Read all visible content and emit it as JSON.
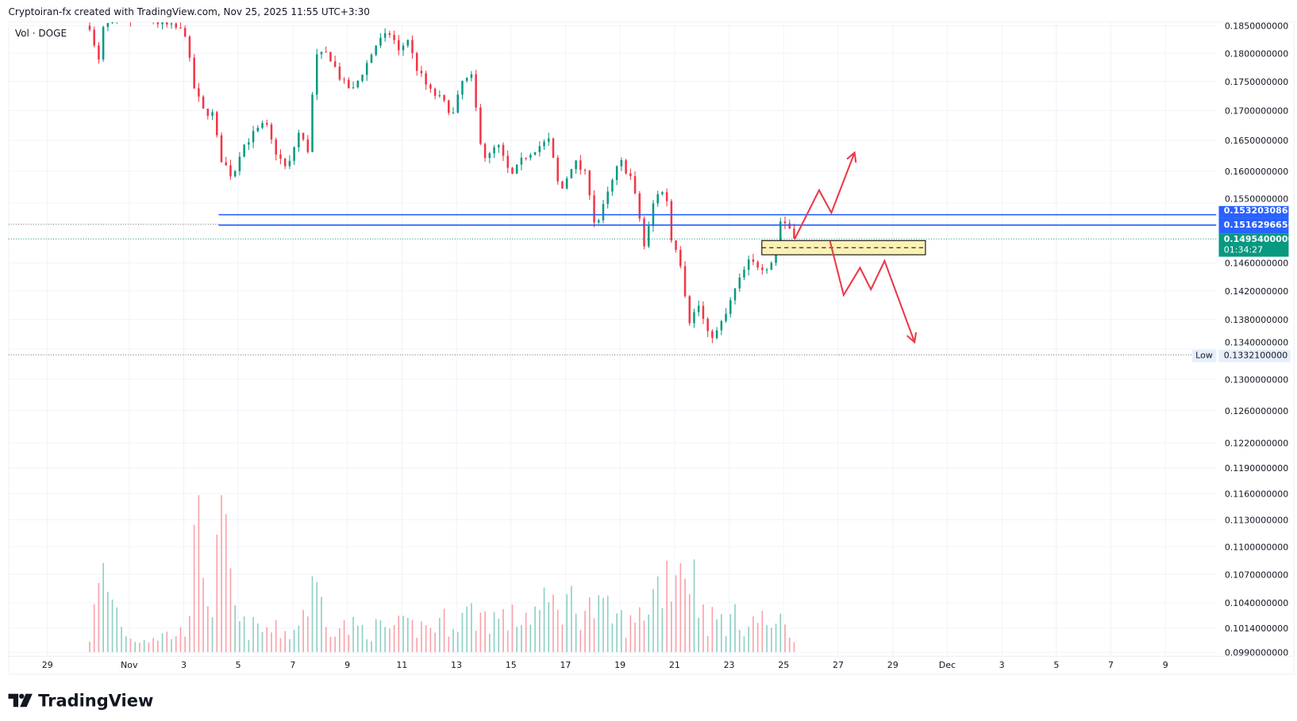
{
  "caption": "Cryptoiran-fx created with TradingView.com, Nov 25, 2025 11:55 UTC+3:30",
  "legend": "Vol · DOGE",
  "logo_text": "TradingView",
  "price_tags": {
    "line1": "0.1532030861",
    "line2": "0.1516296656",
    "last": "0.1495400000",
    "countdown": "01:34:27",
    "low_label": "Low",
    "low_value": "0.1332100000"
  },
  "colors": {
    "up": "#089981",
    "down": "#f23645",
    "line": "#2962ff",
    "arrow": "#ec3a4c",
    "zone": "#fbf1b4"
  },
  "chart_data": {
    "type": "candlestick",
    "symbol": "DOGE",
    "scale": "log",
    "ylim": [
      0.099,
      0.185
    ],
    "y_ticks": [
      "0.1850000000",
      "0.1800000000",
      "0.1750000000",
      "0.1700000000",
      "0.1650000000",
      "0.1600000000",
      "0.1550000000",
      "0.1460000000",
      "0.1420000000",
      "0.1380000000",
      "0.1340000000",
      "0.1300000000",
      "0.1260000000",
      "0.1220000000",
      "0.1190000000",
      "0.1160000000",
      "0.1130000000",
      "0.1100000000",
      "0.1070000000",
      "0.1040000000",
      "0.1014000000",
      "0.0990000000"
    ],
    "x_ticks": [
      "29",
      "Nov",
      "3",
      "5",
      "7",
      "9",
      "11",
      "13",
      "15",
      "17",
      "19",
      "21",
      "23",
      "25",
      "27",
      "29",
      "Dec",
      "3",
      "5",
      "7",
      "9"
    ],
    "x_tick_days": [
      0,
      3,
      5,
      7,
      9,
      11,
      13,
      15,
      17,
      19,
      21,
      23,
      25,
      27,
      29,
      31,
      33,
      35,
      37,
      39,
      41
    ],
    "x_unit": "days since Oct 29",
    "candle_interval_hours": 4,
    "price_path": [
      [
        1.55,
        0.185
      ],
      [
        1.86,
        0.1777
      ],
      [
        2.07,
        0.185
      ],
      [
        2.8,
        0.186
      ],
      [
        3.75,
        0.186
      ],
      [
        4.8,
        0.1844
      ],
      [
        5.1,
        0.1835
      ],
      [
        5.3,
        0.1749
      ],
      [
        5.7,
        0.17
      ],
      [
        6.1,
        0.1693
      ],
      [
        6.3,
        0.1625
      ],
      [
        6.8,
        0.159
      ],
      [
        7.1,
        0.1637
      ],
      [
        7.6,
        0.1663
      ],
      [
        8.0,
        0.1678
      ],
      [
        8.3,
        0.1637
      ],
      [
        8.8,
        0.16
      ],
      [
        9.2,
        0.1663
      ],
      [
        9.6,
        0.1631
      ],
      [
        9.8,
        0.1792
      ],
      [
        10.3,
        0.18
      ],
      [
        10.8,
        0.1749
      ],
      [
        11.2,
        0.1734
      ],
      [
        11.7,
        0.178
      ],
      [
        12.1,
        0.182
      ],
      [
        12.6,
        0.1837
      ],
      [
        12.9,
        0.18
      ],
      [
        13.2,
        0.1829
      ],
      [
        13.5,
        0.1777
      ],
      [
        14.0,
        0.1734
      ],
      [
        14.4,
        0.172
      ],
      [
        14.9,
        0.1693
      ],
      [
        15.2,
        0.1749
      ],
      [
        15.6,
        0.1757
      ],
      [
        15.8,
        0.1663
      ],
      [
        16.1,
        0.1617
      ],
      [
        16.5,
        0.1644
      ],
      [
        17.0,
        0.159
      ],
      [
        17.5,
        0.1624
      ],
      [
        17.9,
        0.1637
      ],
      [
        18.4,
        0.165
      ],
      [
        18.8,
        0.1564
      ],
      [
        19.3,
        0.1617
      ],
      [
        19.8,
        0.159
      ],
      [
        20.1,
        0.151
      ],
      [
        20.5,
        0.1558
      ],
      [
        21.0,
        0.1617
      ],
      [
        21.4,
        0.159
      ],
      [
        21.7,
        0.1531
      ],
      [
        21.9,
        0.148
      ],
      [
        22.3,
        0.1566
      ],
      [
        22.7,
        0.1566
      ],
      [
        22.8,
        0.15
      ],
      [
        23.1,
        0.148
      ],
      [
        23.3,
        0.1446
      ],
      [
        23.5,
        0.1376
      ],
      [
        23.9,
        0.14
      ],
      [
        24.2,
        0.1359
      ],
      [
        24.5,
        0.1359
      ],
      [
        24.9,
        0.1388
      ],
      [
        25.2,
        0.142
      ],
      [
        25.7,
        0.1461
      ],
      [
        26.2,
        0.1455
      ],
      [
        26.5,
        0.1455
      ],
      [
        26.7,
        0.1484
      ],
      [
        26.9,
        0.1526
      ],
      [
        27.2,
        0.1513
      ],
      [
        27.5,
        0.1495
      ]
    ],
    "volume_relative": [
      [
        1.55,
        0.12
      ],
      [
        2.0,
        0.6
      ],
      [
        3.0,
        0.1
      ],
      [
        5.0,
        0.15
      ],
      [
        5.6,
        1.0
      ],
      [
        6.0,
        0.3
      ],
      [
        6.4,
        0.95
      ],
      [
        7.0,
        0.2
      ],
      [
        9.0,
        0.15
      ],
      [
        9.8,
        0.5
      ],
      [
        10.5,
        0.2
      ],
      [
        12,
        0.18
      ],
      [
        14,
        0.2
      ],
      [
        15.5,
        0.3
      ],
      [
        17,
        0.25
      ],
      [
        19,
        0.4
      ],
      [
        20.5,
        0.3
      ],
      [
        21.5,
        0.2
      ],
      [
        22.6,
        0.6
      ],
      [
        23.3,
        0.75
      ],
      [
        23.5,
        0.7
      ],
      [
        24.2,
        0.25
      ],
      [
        26,
        0.25
      ],
      [
        27,
        0.2
      ],
      [
        27.5,
        0.08
      ]
    ],
    "horizontal_levels": [
      0.1532030861,
      0.1516296656
    ],
    "last_price": 0.14954,
    "low": 0.13321,
    "zone": {
      "from_day": 26.2,
      "to_day": 32.2,
      "top": 0.1493,
      "bottom": 0.1472
    },
    "scenario_up": [
      [
        27.4,
        0.1495
      ],
      [
        28.3,
        0.157
      ],
      [
        28.75,
        0.1535
      ],
      [
        29.6,
        0.163
      ]
    ],
    "scenario_down": [
      [
        28.7,
        0.1492
      ],
      [
        29.2,
        0.1414
      ],
      [
        29.8,
        0.1453
      ],
      [
        30.2,
        0.1422
      ],
      [
        30.7,
        0.1463
      ],
      [
        31.8,
        0.1349
      ]
    ]
  }
}
